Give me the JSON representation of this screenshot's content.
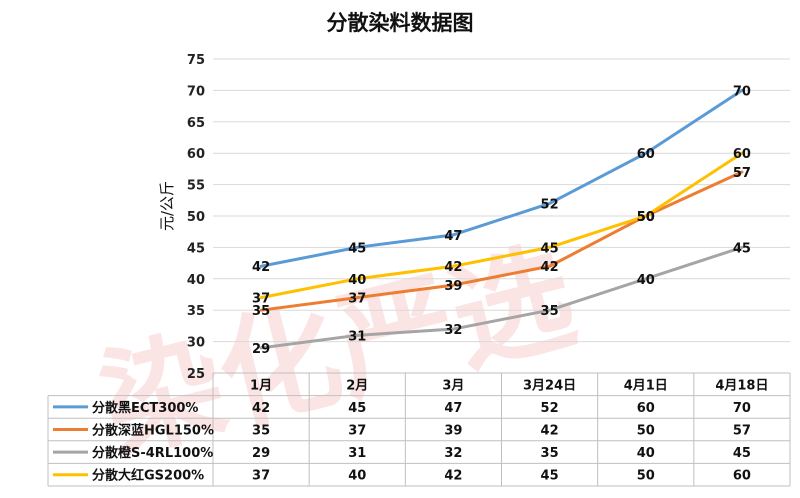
{
  "chart_data": {
    "type": "line",
    "title": "分散染料数据图",
    "ylabel": "元/公斤",
    "xlabel": "",
    "ylim": [
      25,
      75
    ],
    "yticks": [
      25,
      30,
      35,
      40,
      45,
      50,
      55,
      60,
      65,
      70,
      75
    ],
    "grid": true,
    "legend_placement": "bottom data table",
    "categories": [
      "1月",
      "2月",
      "3月",
      "3月24日",
      "4月1日",
      "4月18日"
    ],
    "series": [
      {
        "name": "分散黑ECT300%",
        "color": "#5b9bd5",
        "values": [
          42,
          45,
          47,
          52,
          60,
          70
        ]
      },
      {
        "name": "分散深蓝HGL150%",
        "color": "#ed7d31",
        "values": [
          35,
          37,
          39,
          42,
          50,
          57
        ]
      },
      {
        "name": "分散橙S-4RL100%",
        "color": "#a5a5a5",
        "values": [
          29,
          31,
          32,
          35,
          40,
          45
        ]
      },
      {
        "name": "分散大红GS200%",
        "color": "#ffc000",
        "values": [
          37,
          40,
          42,
          45,
          50,
          60
        ]
      }
    ]
  },
  "watermark": {
    "text": "染化严选",
    "color": "#e83a3a"
  }
}
